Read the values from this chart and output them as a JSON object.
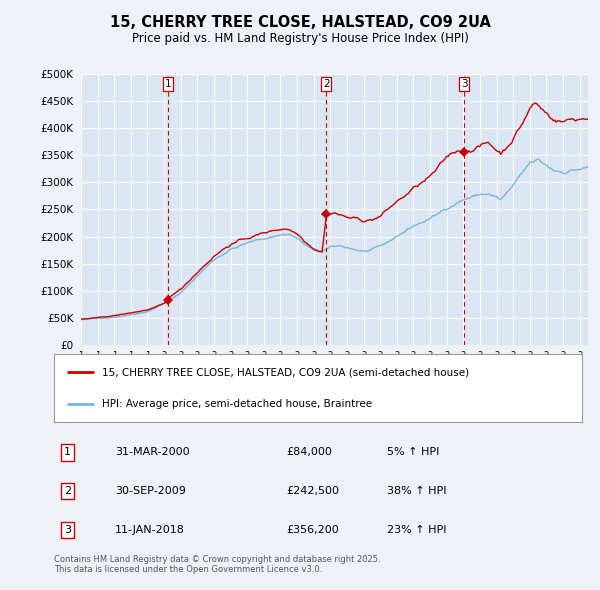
{
  "title": "15, CHERRY TREE CLOSE, HALSTEAD, CO9 2UA",
  "subtitle": "Price paid vs. HM Land Registry's House Price Index (HPI)",
  "background_color": "#eef2f8",
  "plot_bg_color": "#dae6f3",
  "red_color": "#cc0000",
  "blue_color": "#7ab4d8",
  "grid_color": "#ffffff",
  "legend_entries": [
    "15, CHERRY TREE CLOSE, HALSTEAD, CO9 2UA (semi-detached house)",
    "HPI: Average price, semi-detached house, Braintree"
  ],
  "transactions": [
    {
      "num": "1",
      "date": "31-MAR-2000",
      "price": "£84,000",
      "pct": "5% ↑ HPI"
    },
    {
      "num": "2",
      "date": "30-SEP-2009",
      "price": "£242,500",
      "pct": "38% ↑ HPI"
    },
    {
      "num": "3",
      "date": "11-JAN-2018",
      "price": "£356,200",
      "pct": "23% ↑ HPI"
    }
  ],
  "footer": "Contains HM Land Registry data © Crown copyright and database right 2025.\nThis data is licensed under the Open Government Licence v3.0.",
  "ylim": [
    0,
    500000
  ],
  "yticks": [
    0,
    50000,
    100000,
    150000,
    200000,
    250000,
    300000,
    350000,
    400000,
    450000,
    500000
  ],
  "xlim_start": 1995.0,
  "xlim_end": 2025.5,
  "purchase_points": [
    {
      "year": 2000.25,
      "value": 84000
    },
    {
      "year": 2009.75,
      "value": 242500
    },
    {
      "year": 2018.04,
      "value": 356200
    }
  ],
  "vlines": [
    {
      "year": 2000.25,
      "label": "1"
    },
    {
      "year": 2009.75,
      "label": "2"
    },
    {
      "year": 2018.04,
      "label": "3"
    }
  ]
}
